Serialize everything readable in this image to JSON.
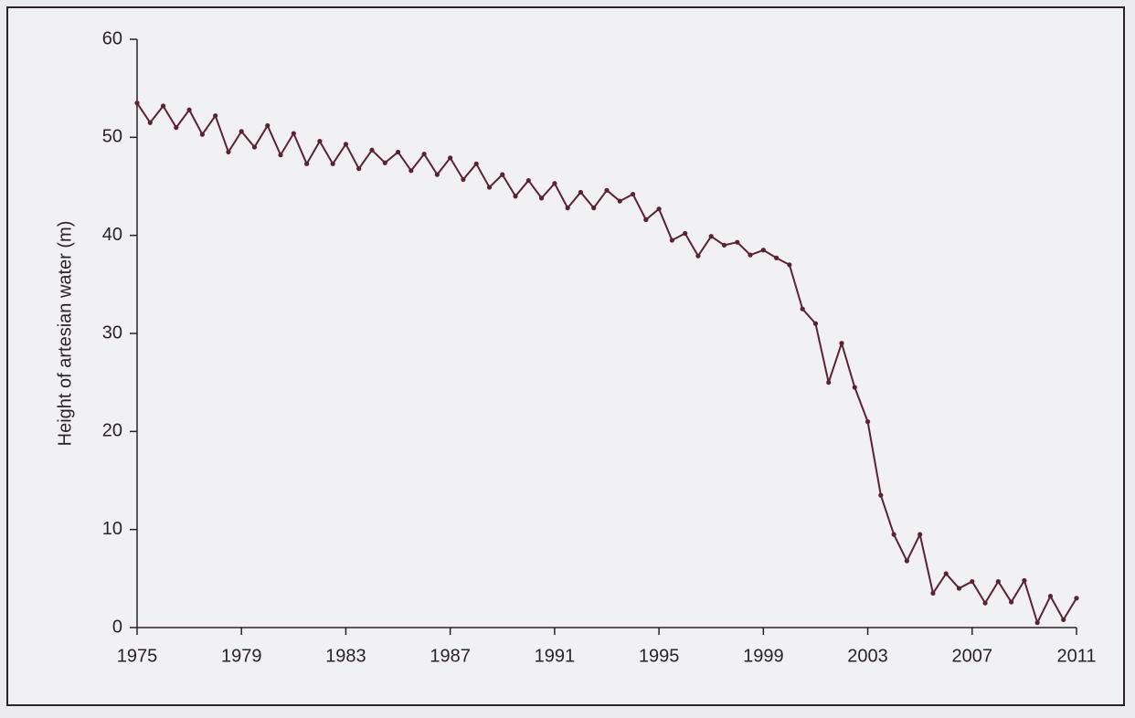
{
  "chart_data": {
    "type": "line",
    "y_label": "Height of artesian water (m)",
    "x": [
      1975,
      1975.5,
      1976,
      1976.5,
      1977,
      1977.5,
      1978,
      1978.5,
      1979,
      1979.5,
      1980,
      1980.5,
      1981,
      1981.5,
      1982,
      1982.5,
      1983,
      1983.5,
      1984,
      1984.5,
      1985,
      1985.5,
      1986,
      1986.5,
      1987,
      1987.5,
      1988,
      1988.5,
      1989,
      1989.5,
      1990,
      1990.5,
      1991,
      1991.5,
      1992,
      1992.5,
      1993,
      1993.5,
      1994,
      1994.5,
      1995,
      1995.5,
      1996,
      1996.5,
      1997,
      1997.5,
      1998,
      1998.5,
      1999,
      1999.5,
      2000,
      2000.5,
      2001,
      2001.5,
      2002,
      2002.5,
      2003,
      2003.5,
      2004,
      2004.5,
      2005,
      2005.5,
      2006,
      2006.5,
      2007,
      2007.5,
      2008,
      2008.5,
      2009,
      2009.5,
      2010,
      2010.5,
      2011
    ],
    "series": [
      {
        "color": "#5a2232",
        "values": [
          53.5,
          51.5,
          53.2,
          51.0,
          52.8,
          50.3,
          52.2,
          48.5,
          50.6,
          49.0,
          51.2,
          48.2,
          50.4,
          47.3,
          49.6,
          47.3,
          49.3,
          46.8,
          48.7,
          47.4,
          48.5,
          46.6,
          48.3,
          46.2,
          47.9,
          45.7,
          47.3,
          44.9,
          46.2,
          44.0,
          45.6,
          43.8,
          45.3,
          42.8,
          44.4,
          42.8,
          44.6,
          43.5,
          44.2,
          41.6,
          42.7,
          39.5,
          40.2,
          37.9,
          39.9,
          39.0,
          39.3,
          38.0,
          38.5,
          37.7,
          37.0,
          32.5,
          31.0,
          25.0,
          29.0,
          24.5,
          21.0,
          13.5,
          9.5,
          6.8,
          9.5,
          3.5,
          5.5,
          4.0,
          4.7,
          2.5,
          4.7,
          2.6,
          4.8,
          0.5,
          3.2,
          0.8,
          3.0
        ]
      }
    ],
    "xlim": [
      1975,
      2011
    ],
    "xticks": [
      1975,
      1979,
      1983,
      1987,
      1991,
      1995,
      1999,
      2003,
      2007,
      2011
    ],
    "ylim": [
      0,
      60
    ],
    "yticks": [
      0,
      10,
      20,
      30,
      40,
      50,
      60
    ],
    "grid": false
  }
}
